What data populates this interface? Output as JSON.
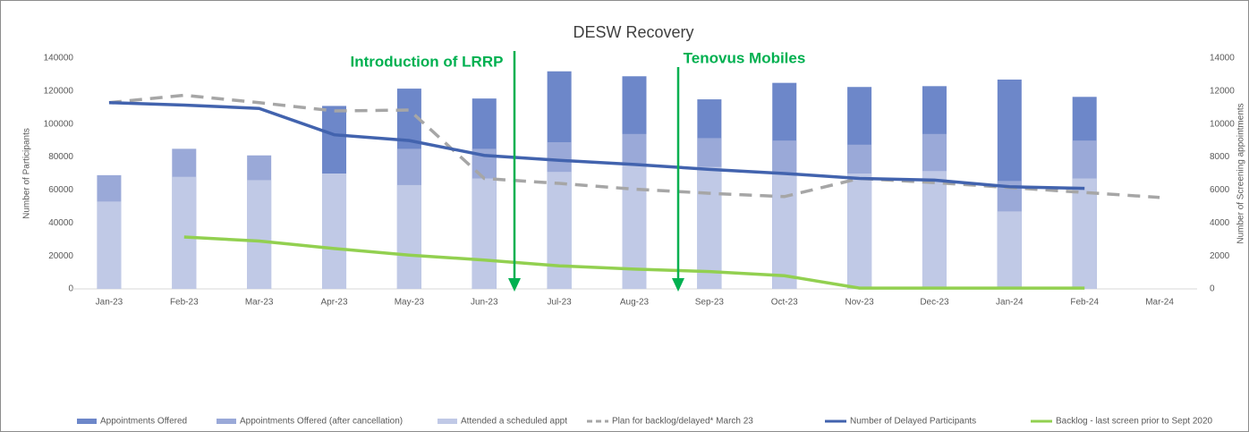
{
  "chart_data": {
    "type": "bar",
    "title": "DESW Recovery",
    "y_label": "Number of Participants",
    "y2_label": "Number of Screening appointments",
    "categories": [
      "Jan-23",
      "Feb-23",
      "Mar-23",
      "Apr-23",
      "May-23",
      "Jun-23",
      "Jul-23",
      "Aug-23",
      "Sep-23",
      "Oct-23",
      "Nov-23",
      "Dec-23",
      "Jan-24",
      "Feb-24",
      "Mar-24"
    ],
    "ylim": [
      0,
      140000
    ],
    "yticks": [
      0,
      20000,
      40000,
      60000,
      80000,
      100000,
      120000,
      140000
    ],
    "y2lim": [
      0,
      14000
    ],
    "y2ticks": [
      0,
      2000,
      4000,
      6000,
      8000,
      10000,
      12000,
      14000
    ],
    "annotations": [
      "Introduction of LRRP",
      "Tenovus Mobiles"
    ],
    "series": [
      {
        "name": "Appointments Offered",
        "type": "bar",
        "axis": "y2",
        "color": "#6d87c9",
        "values": [
          null,
          null,
          null,
          11100,
          12150,
          11550,
          13200,
          12900,
          11500,
          12500,
          12250,
          12300,
          12700,
          11650,
          null
        ]
      },
      {
        "name": "Appointments Offered (after cancellation)",
        "type": "bar",
        "axis": "y2",
        "color": "#9aa9d8",
        "values": [
          6900,
          8500,
          8100,
          null,
          8500,
          8500,
          8900,
          9400,
          9150,
          9000,
          8750,
          9400,
          6550,
          9000,
          null
        ]
      },
      {
        "name": "Attended a scheduled appt",
        "type": "bar",
        "axis": "y2",
        "color": "#c0c9e6",
        "values": [
          5300,
          6800,
          6600,
          7000,
          6300,
          6700,
          7100,
          7500,
          7400,
          7000,
          7000,
          7150,
          4700,
          6700,
          null
        ]
      },
      {
        "name": "Plan for backlog/delayed* March 23",
        "type": "line",
        "dashed": true,
        "color": "#a6a6a6",
        "values": [
          113000,
          117500,
          113000,
          108000,
          108500,
          67000,
          64000,
          60500,
          58000,
          56000,
          67000,
          64500,
          61500,
          58500,
          55500
        ]
      },
      {
        "name": "Number of Delayed Participants",
        "type": "line",
        "color": "#4263ae",
        "values": [
          113000,
          111500,
          109500,
          93500,
          90000,
          81000,
          78000,
          75500,
          72500,
          70000,
          67000,
          66000,
          62000,
          61000,
          null
        ]
      },
      {
        "name": "Backlog - last screen prior to Sept 2020",
        "type": "line",
        "color": "#92d050",
        "values": [
          null,
          31500,
          29000,
          24500,
          20500,
          17500,
          14000,
          12000,
          10500,
          8000,
          500,
          500,
          500,
          500,
          null
        ]
      }
    ]
  }
}
